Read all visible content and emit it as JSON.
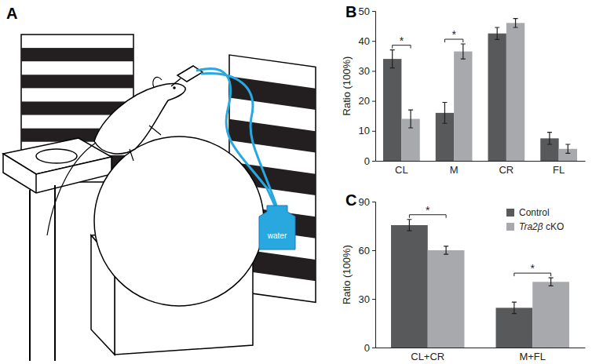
{
  "chart_data": [
    {
      "type": "bar",
      "title": "B",
      "y_label": "Ratio (100%)",
      "categories": [
        "CL",
        "M",
        "CR",
        "FL"
      ],
      "series": [
        {
          "color": "#58595b",
          "values": [
            34,
            16,
            42.5,
            7.5
          ],
          "error": [
            3,
            3.5,
            2,
            2
          ]
        },
        {
          "color": "#a7a9ac",
          "values": [
            14,
            36.5,
            46,
            4
          ],
          "error": [
            3,
            2.5,
            1.5,
            1.5
          ]
        }
      ],
      "ylim": [
        0,
        50
      ],
      "yticks": [
        0,
        10,
        20,
        30,
        40,
        50
      ],
      "annotations": [
        {
          "text": "*",
          "category": "CL"
        },
        {
          "text": "*",
          "category": "M"
        }
      ]
    },
    {
      "type": "bar",
      "title": "C",
      "y_label": "Ratio (100%)",
      "categories": [
        "CL+CR",
        "M+FL"
      ],
      "series": [
        {
          "name": "Control",
          "color": "#58595b",
          "values": [
            75.5,
            24.5
          ],
          "error": [
            3.5,
            3.5
          ]
        },
        {
          "name": "Tra2β cKO",
          "color": "#a7a9ac",
          "values": [
            60,
            40.5
          ],
          "error": [
            2.5,
            2.5
          ]
        }
      ],
      "ylim": [
        0,
        90
      ],
      "yticks": [
        0,
        30,
        60,
        90
      ],
      "legend": "top-right",
      "annotations": [
        {
          "text": "*",
          "category": "CL+CR"
        },
        {
          "text": "*",
          "category": "M+FL"
        }
      ]
    }
  ],
  "diagram": {
    "title": "A",
    "bottle_label": "water"
  }
}
